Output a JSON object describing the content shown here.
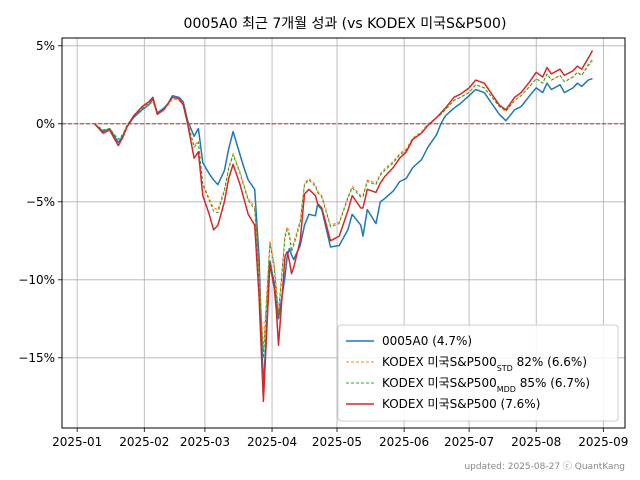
{
  "chart_data": {
    "type": "line",
    "title": "0005A0 최근 7개월 성과 (vs KODEX 미국S&P500)",
    "xlabel": "",
    "ylabel": "",
    "x_ticks": [
      "2025-01",
      "2025-02",
      "2025-03",
      "2025-04",
      "2025-05",
      "2025-06",
      "2025-07",
      "2025-08",
      "2025-09"
    ],
    "y_ticks": [
      "5%",
      "0%",
      "−5%",
      "−10%",
      "−15%"
    ],
    "y_tick_values": [
      5,
      0,
      -5,
      -10,
      -15
    ],
    "ylim": [
      -19.5,
      5.5
    ],
    "xlim": [
      "2024-12-25",
      "2025-09-11"
    ],
    "grid": true,
    "legend_position": "lower-right",
    "reference_line": {
      "value": 0,
      "color": "#d62728",
      "style": "dashed"
    },
    "x": [
      "2025-01-09",
      "2025-01-13",
      "2025-01-16",
      "2025-01-20",
      "2025-01-22",
      "2025-01-24",
      "2025-01-27",
      "2025-01-31",
      "2025-02-03",
      "2025-02-05",
      "2025-02-07",
      "2025-02-10",
      "2025-02-12",
      "2025-02-14",
      "2025-02-17",
      "2025-02-19",
      "2025-02-21",
      "2025-02-24",
      "2025-02-26",
      "2025-02-28",
      "2025-03-03",
      "2025-03-05",
      "2025-03-07",
      "2025-03-10",
      "2025-03-12",
      "2025-03-14",
      "2025-03-17",
      "2025-03-19",
      "2025-03-21",
      "2025-03-24",
      "2025-03-26",
      "2025-03-28",
      "2025-03-31",
      "2025-04-02",
      "2025-04-03",
      "2025-04-04",
      "2025-04-07",
      "2025-04-08",
      "2025-04-09",
      "2025-04-10",
      "2025-04-11",
      "2025-04-14",
      "2025-04-16",
      "2025-04-18",
      "2025-04-21",
      "2025-04-22",
      "2025-04-24",
      "2025-04-28",
      "2025-05-02",
      "2025-05-06",
      "2025-05-08",
      "2025-05-12",
      "2025-05-13",
      "2025-05-15",
      "2025-05-19",
      "2025-05-21",
      "2025-05-23",
      "2025-05-27",
      "2025-05-30",
      "2025-06-02",
      "2025-06-05",
      "2025-06-09",
      "2025-06-12",
      "2025-06-16",
      "2025-06-18",
      "2025-06-20",
      "2025-06-24",
      "2025-06-27",
      "2025-07-01",
      "2025-07-04",
      "2025-07-08",
      "2025-07-11",
      "2025-07-15",
      "2025-07-18",
      "2025-07-22",
      "2025-07-25",
      "2025-07-29",
      "2025-08-01",
      "2025-08-04",
      "2025-08-06",
      "2025-08-08",
      "2025-08-12",
      "2025-08-14",
      "2025-08-18",
      "2025-08-20",
      "2025-08-22",
      "2025-08-25",
      "2025-08-27"
    ],
    "series": [
      {
        "name": "0005A0 (4.7%)",
        "color": "#1f77b4",
        "style": "solid",
        "width": 1.5,
        "values": [
          0,
          -0.5,
          -0.3,
          -1.2,
          -0.8,
          -0.2,
          0.4,
          0.9,
          1.2,
          1.6,
          0.7,
          1.0,
          1.3,
          1.8,
          1.7,
          1.4,
          0.2,
          -0.8,
          -0.3,
          -2.5,
          -3.2,
          -3.6,
          -3.9,
          -3.0,
          -1.6,
          -0.5,
          -1.9,
          -2.8,
          -3.6,
          -4.2,
          -8.5,
          -17.0,
          -8.8,
          -10.2,
          -11.5,
          -12.5,
          -9.8,
          -8.5,
          -8.0,
          -8.4,
          -8.7,
          -7.8,
          -6.5,
          -5.8,
          -5.9,
          -5.2,
          -5.5,
          -7.9,
          -7.8,
          -6.8,
          -5.8,
          -6.5,
          -7.2,
          -5.5,
          -6.4,
          -5.0,
          -4.8,
          -4.3,
          -3.7,
          -3.5,
          -2.8,
          -2.3,
          -1.5,
          -0.7,
          0.0,
          0.5,
          1.0,
          1.3,
          1.8,
          2.2,
          2.0,
          1.4,
          0.6,
          0.2,
          0.9,
          1.1,
          1.8,
          2.3,
          2.0,
          2.6,
          2.2,
          2.5,
          2.0,
          2.3,
          2.6,
          2.4,
          2.8,
          2.9
        ]
      },
      {
        "name": "KODEX 미국S&P500",
        "name_sub": "STD",
        "name_suffix": " 82% (6.6%)",
        "color": "#ff7f0e",
        "style": "dashed",
        "width": 1.0,
        "values": [
          0,
          -0.4,
          -0.3,
          -1.0,
          -0.7,
          -0.1,
          0.5,
          1.0,
          1.2,
          1.4,
          0.6,
          0.9,
          1.2,
          1.6,
          1.5,
          1.2,
          0.1,
          -1.4,
          -1.1,
          -3.8,
          -4.8,
          -5.4,
          -5.5,
          -4.2,
          -2.8,
          -1.9,
          -3.0,
          -3.9,
          -4.8,
          -5.3,
          -9.5,
          -14.5,
          -7.5,
          -9.0,
          -10.5,
          -12.0,
          -7.1,
          -6.6,
          -7.0,
          -8.0,
          -7.6,
          -6.2,
          -3.8,
          -3.5,
          -3.9,
          -4.3,
          -4.6,
          -6.5,
          -6.3,
          -4.7,
          -4.0,
          -4.6,
          -4.6,
          -3.6,
          -3.8,
          -3.2,
          -2.9,
          -2.4,
          -1.9,
          -1.6,
          -0.9,
          -0.5,
          0.0,
          0.4,
          0.6,
          0.9,
          1.5,
          1.7,
          2.0,
          2.5,
          2.3,
          1.8,
          1.1,
          0.8,
          1.5,
          1.8,
          2.4,
          2.9,
          2.6,
          3.2,
          2.8,
          3.1,
          2.7,
          3.0,
          3.3,
          3.1,
          3.7,
          4.0
        ]
      },
      {
        "name": "KODEX 미국S&P500",
        "name_sub": "MDD",
        "name_suffix": " 85% (6.7%)",
        "color": "#2ca02c",
        "style": "dashed",
        "width": 1.0,
        "values": [
          0,
          -0.4,
          -0.3,
          -1.0,
          -0.7,
          -0.1,
          0.5,
          1.0,
          1.3,
          1.5,
          0.6,
          0.9,
          1.3,
          1.7,
          1.6,
          1.3,
          0.1,
          -1.5,
          -1.2,
          -3.9,
          -4.9,
          -5.6,
          -5.7,
          -4.3,
          -2.9,
          -2.0,
          -3.1,
          -4.0,
          -4.9,
          -5.5,
          -9.8,
          -15.0,
          -7.7,
          -9.2,
          -10.8,
          -12.3,
          -7.3,
          -6.8,
          -7.2,
          -8.2,
          -7.8,
          -6.4,
          -3.9,
          -3.6,
          -4.0,
          -4.4,
          -4.7,
          -6.6,
          -6.4,
          -4.8,
          -4.1,
          -4.7,
          -4.7,
          -3.7,
          -3.9,
          -3.3,
          -3.0,
          -2.5,
          -2.0,
          -1.7,
          -1.0,
          -0.6,
          -0.1,
          0.4,
          0.6,
          0.9,
          1.5,
          1.7,
          2.0,
          2.5,
          2.3,
          1.8,
          1.1,
          0.8,
          1.5,
          1.8,
          2.4,
          2.9,
          2.6,
          3.2,
          2.8,
          3.1,
          2.7,
          3.0,
          3.3,
          3.1,
          3.8,
          4.1
        ]
      },
      {
        "name": "KODEX 미국S&P500 (7.6%)",
        "color": "#d62728",
        "style": "solid",
        "width": 1.5,
        "values": [
          0,
          -0.6,
          -0.4,
          -1.4,
          -0.9,
          -0.2,
          0.5,
          1.1,
          1.4,
          1.7,
          0.6,
          0.9,
          1.3,
          1.7,
          1.6,
          1.2,
          0.0,
          -2.2,
          -1.8,
          -4.6,
          -5.8,
          -6.8,
          -6.5,
          -5.0,
          -3.5,
          -2.6,
          -3.8,
          -4.8,
          -5.8,
          -6.5,
          -11.0,
          -17.8,
          -9.0,
          -10.5,
          -12.0,
          -14.2,
          -8.5,
          -8.2,
          -8.8,
          -9.6,
          -9.2,
          -7.5,
          -4.5,
          -4.2,
          -4.6,
          -5.1,
          -5.4,
          -7.5,
          -7.2,
          -5.6,
          -4.6,
          -5.4,
          -5.4,
          -4.2,
          -4.4,
          -3.8,
          -3.4,
          -2.8,
          -2.2,
          -1.8,
          -1.0,
          -0.6,
          -0.1,
          0.4,
          0.7,
          1.0,
          1.7,
          1.9,
          2.3,
          2.8,
          2.6,
          2.0,
          1.2,
          0.9,
          1.7,
          2.0,
          2.7,
          3.3,
          3.0,
          3.6,
          3.2,
          3.5,
          3.1,
          3.4,
          3.7,
          3.5,
          4.2,
          4.7
        ]
      }
    ]
  },
  "footer": "updated: 2025-08-27 ⓒ QuantKang"
}
